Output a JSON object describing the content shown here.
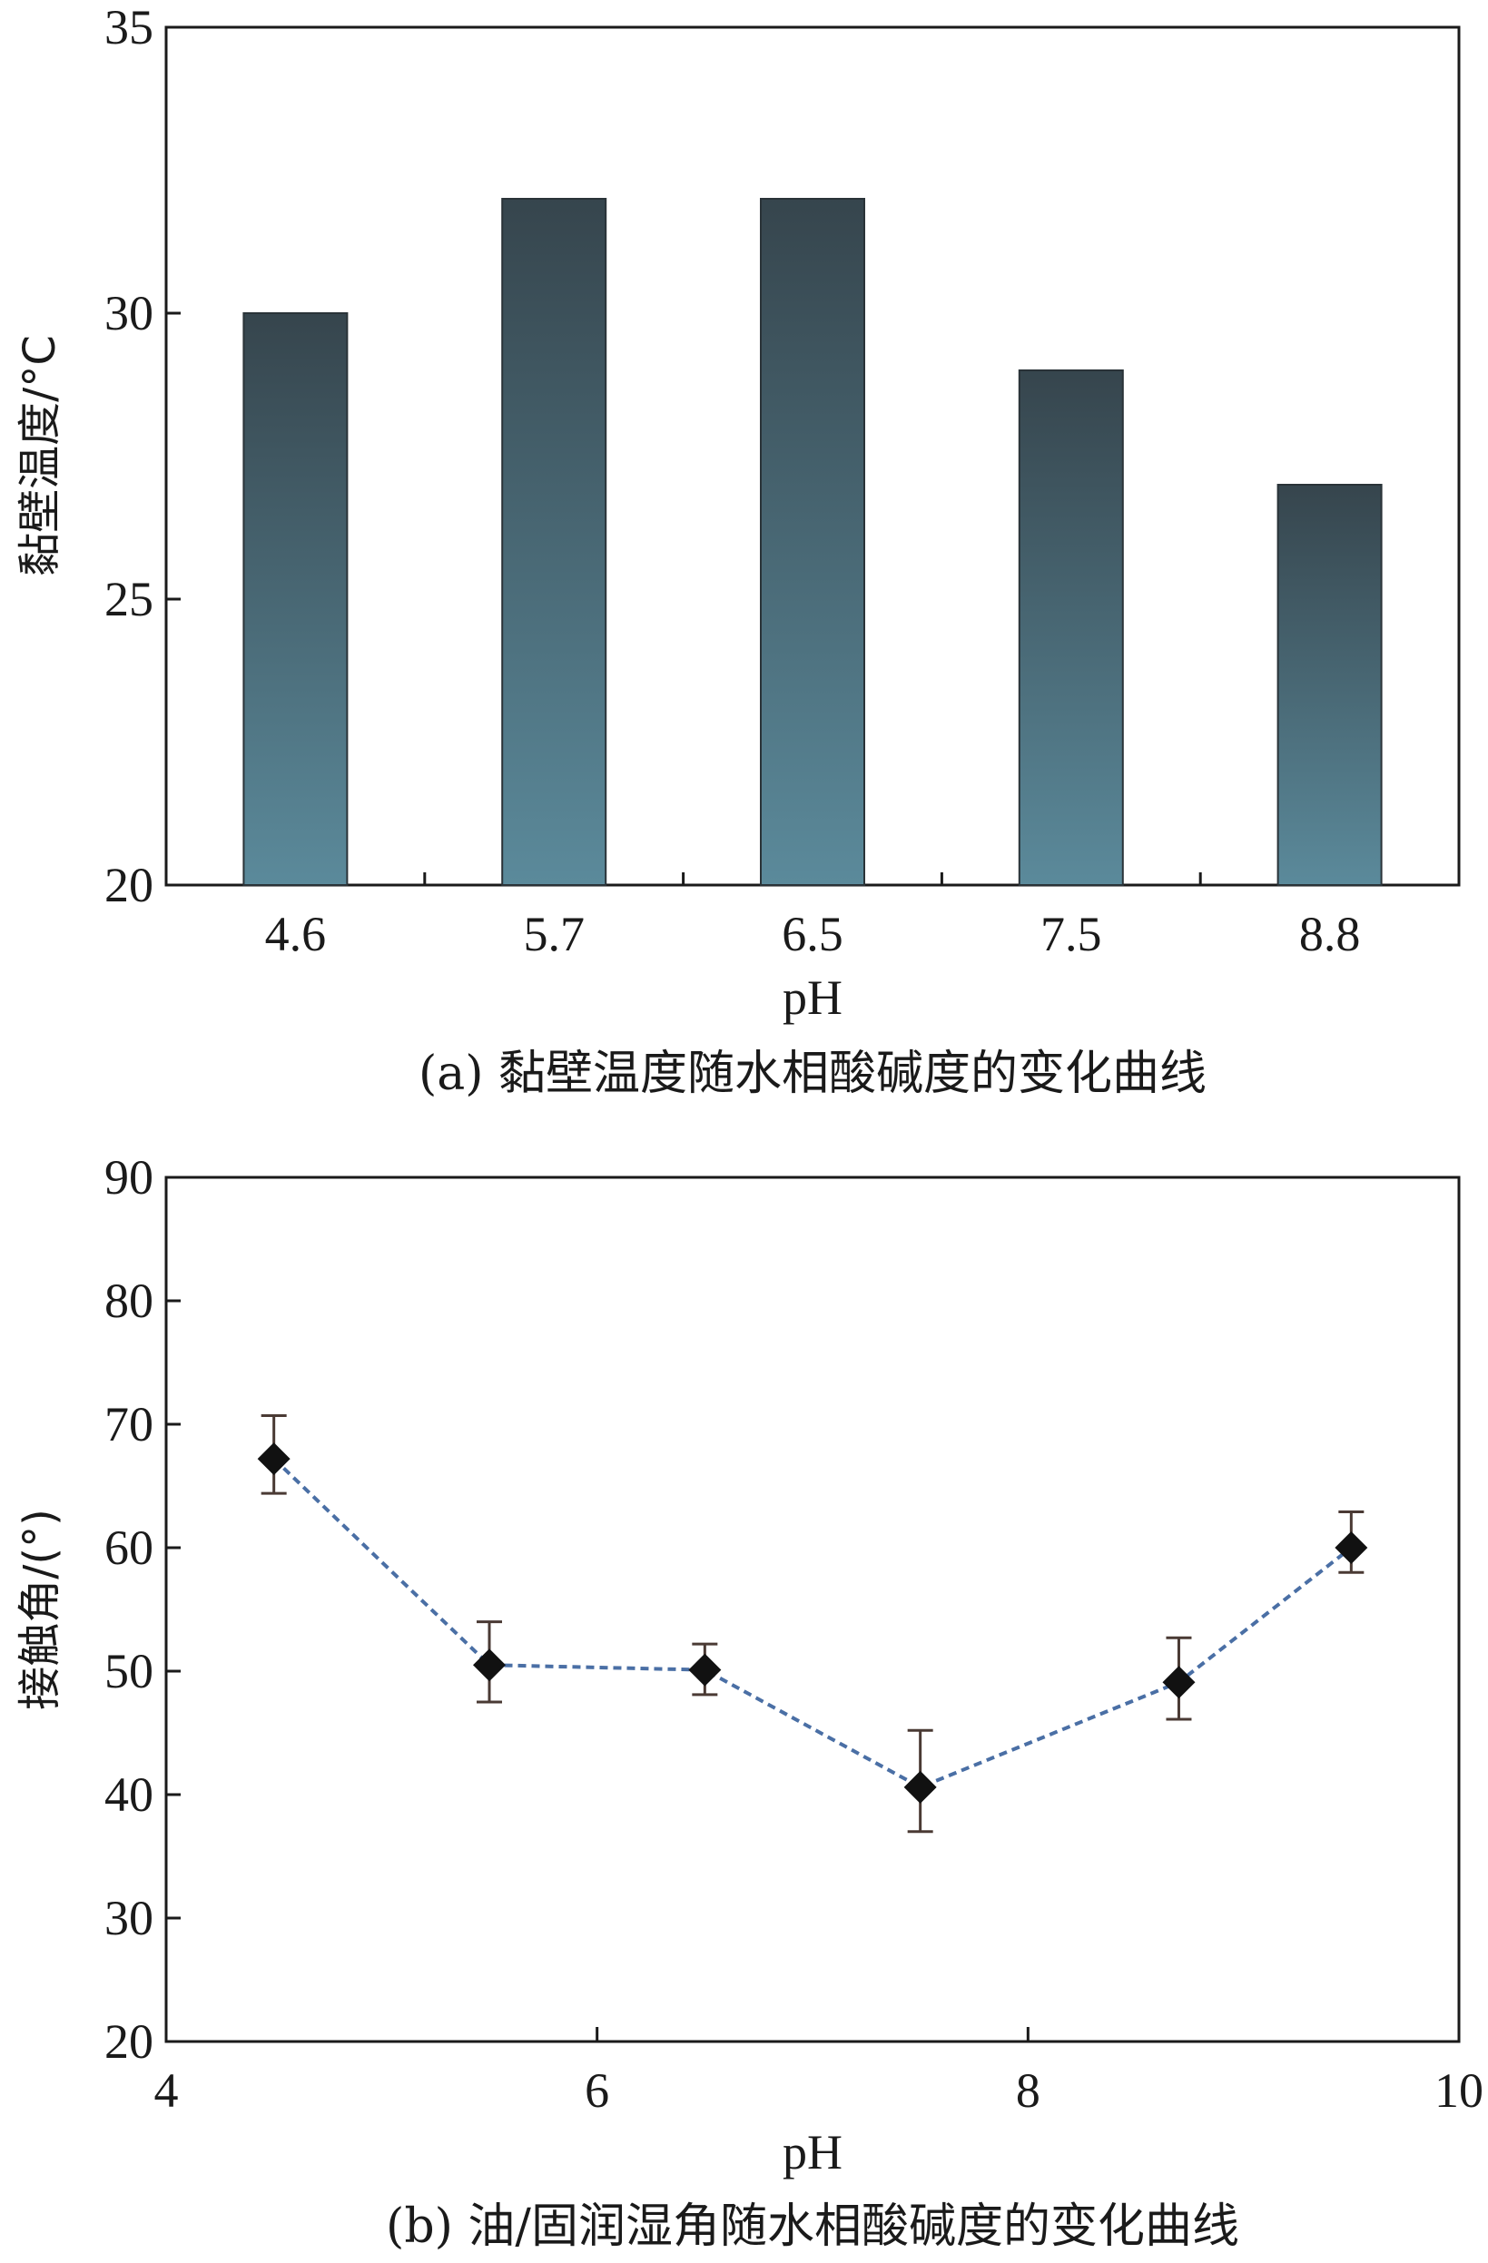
{
  "charts": [
    {
      "type": "bar",
      "categories": [
        "4.6",
        "5.7",
        "6.5",
        "7.5",
        "8.8"
      ],
      "values": [
        30,
        32,
        32,
        29,
        27
      ],
      "xlabel": "pH",
      "ylabel": "黏壁温度/°C",
      "ylim": [
        20,
        35
      ],
      "yticks": [
        20,
        25,
        30,
        35
      ],
      "caption": "(a) 黏壁温度随水相酸碱度的变化曲线",
      "bar_color_top": "#36454d",
      "bar_color_bottom": "#5b8a9b"
    },
    {
      "type": "line",
      "x": [
        4.5,
        5.5,
        6.5,
        7.5,
        8.7,
        9.5
      ],
      "y": [
        67.2,
        50.5,
        50.1,
        40.6,
        49.1,
        60.0
      ],
      "y_err_low": [
        2.8,
        3.0,
        2.0,
        3.6,
        3.0,
        2.0
      ],
      "y_err_high": [
        3.5,
        3.5,
        2.1,
        4.6,
        3.6,
        2.9
      ],
      "xlabel": "pH",
      "ylabel": "接触角/(°)",
      "xlim": [
        4,
        10
      ],
      "ylim": [
        20,
        90
      ],
      "xticks": [
        4,
        6,
        8,
        10
      ],
      "yticks": [
        20,
        30,
        40,
        50,
        60,
        70,
        80,
        90
      ],
      "caption": "(b) 油/固润湿角随水相酸碱度的变化曲线",
      "line_color": "#4a6fa5",
      "marker_color": "#111111",
      "errorbar_color": "#4a3a34"
    }
  ]
}
